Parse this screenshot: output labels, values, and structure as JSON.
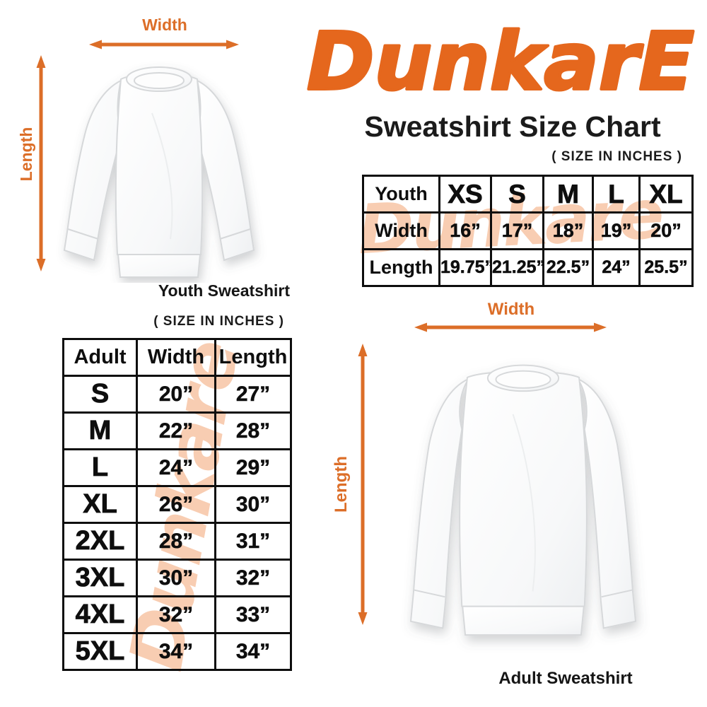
{
  "colors": {
    "accent": "#E5671D",
    "arrow": "#DC6E28",
    "watermark": "#F8CDB2",
    "text": "#111111"
  },
  "logo": {
    "text": "DunkarE"
  },
  "header": {
    "title": "Sweatshirt Size Chart",
    "size_note": "( SIZE IN INCHES )"
  },
  "watermark_text": "Dunkare",
  "youth_diagram": {
    "width_label": "Width",
    "length_label": "Length",
    "caption": "Youth Sweatshirt"
  },
  "adult_diagram": {
    "width_label": "Width",
    "length_label": "Length",
    "caption": "Adult Sweatshirt"
  },
  "youth_table": {
    "header": [
      "Youth",
      "XS",
      "S",
      "M",
      "L",
      "XL"
    ],
    "rows": [
      {
        "label": "Width",
        "values": [
          "16”",
          "17”",
          "18”",
          "19”",
          "20”"
        ]
      },
      {
        "label": "Length",
        "values": [
          "19.75”",
          "21.25”",
          "22.5”",
          "24”",
          "25.5”"
        ]
      }
    ]
  },
  "adult_table": {
    "size_note": "( SIZE IN INCHES )",
    "header": [
      "Adult",
      "Width",
      "Length"
    ],
    "rows": [
      [
        "S",
        "20”",
        "27”"
      ],
      [
        "M",
        "22”",
        "28”"
      ],
      [
        "L",
        "24”",
        "29”"
      ],
      [
        "XL",
        "26”",
        "30”"
      ],
      [
        "2XL",
        "28”",
        "31”"
      ],
      [
        "3XL",
        "30”",
        "32”"
      ],
      [
        "4XL",
        "32”",
        "33”"
      ],
      [
        "5XL",
        "34”",
        "34”"
      ]
    ]
  }
}
